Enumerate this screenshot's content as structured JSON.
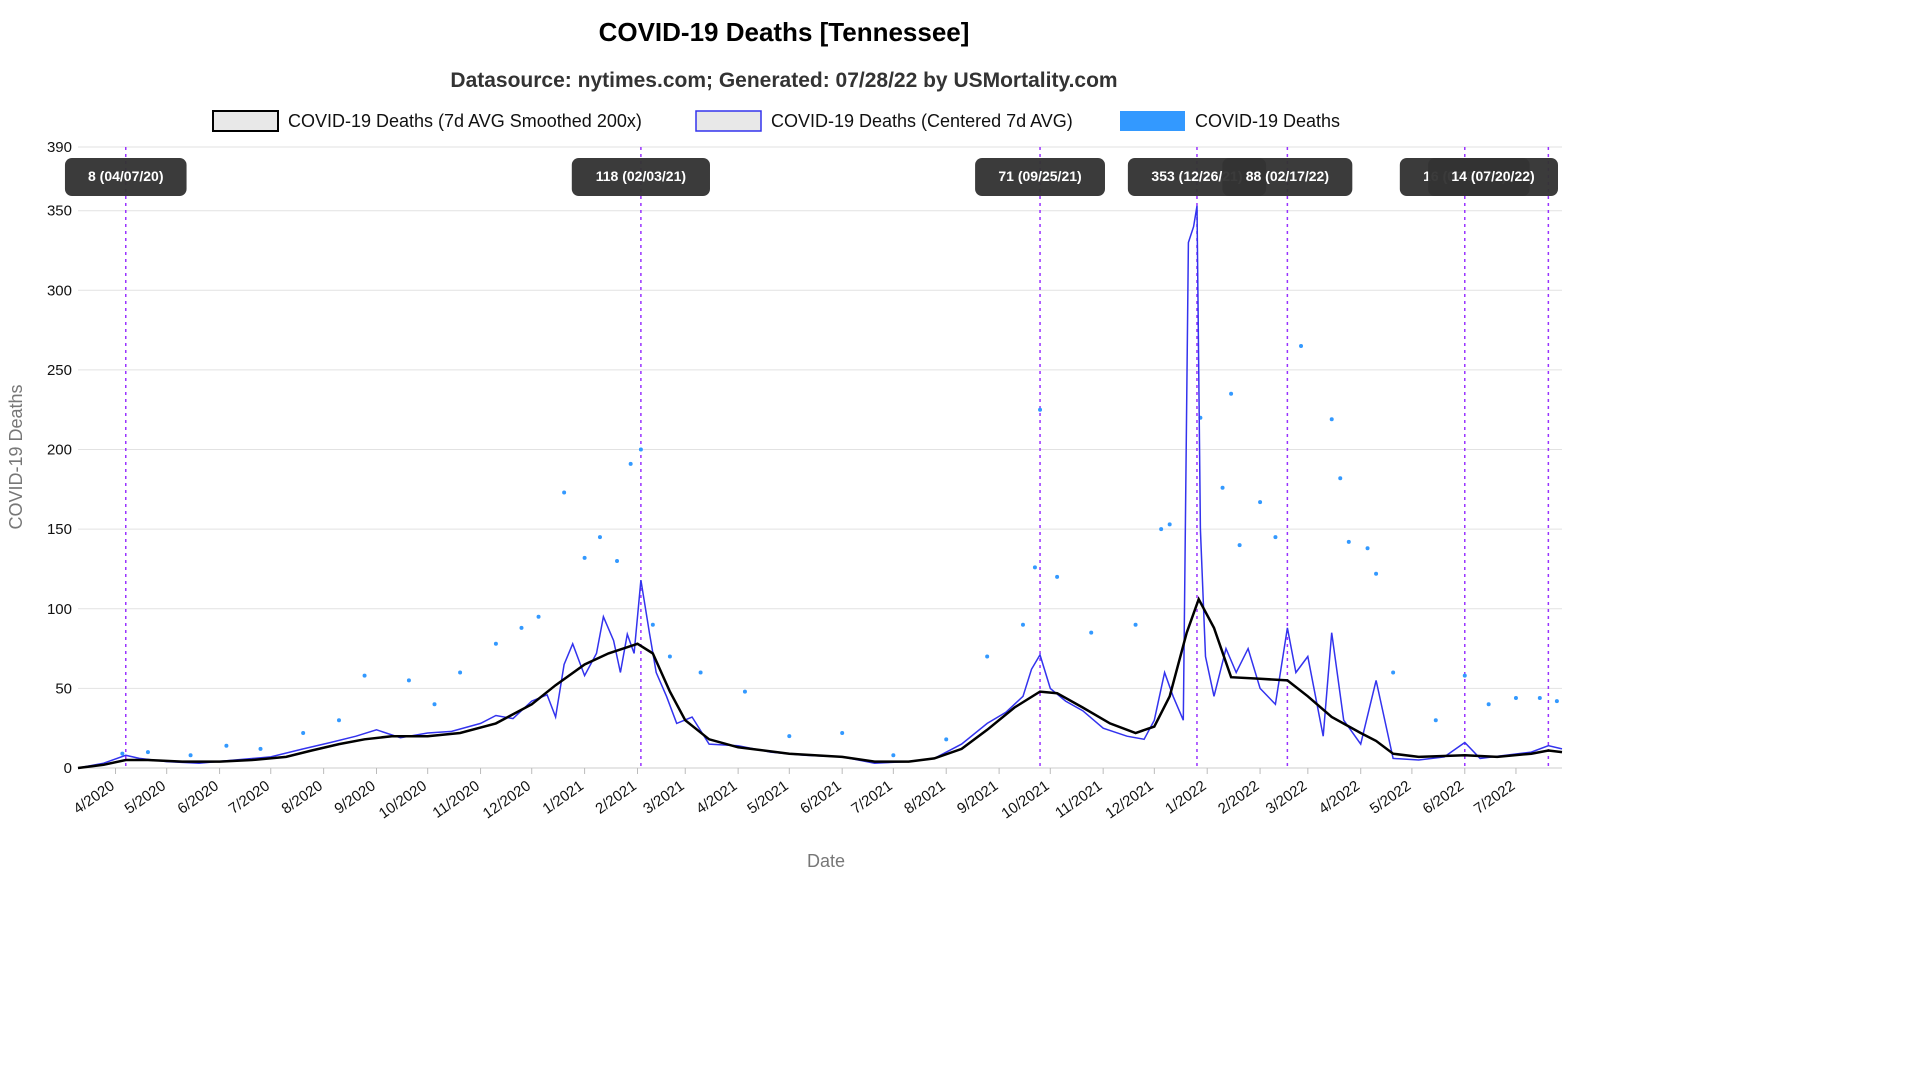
{
  "chart_data": {
    "type": "line",
    "title": "COVID-19 Deaths [Tennessee]",
    "subtitle": "Datasource: nytimes.com; Generated: 07/28/22 by USMortality.com",
    "xlabel": "Date",
    "ylabel": "COVID-19 Deaths",
    "ylim": [
      0,
      390
    ],
    "yticks": [
      0,
      50,
      100,
      150,
      200,
      250,
      300,
      350,
      390
    ],
    "x_range": [
      "2020-03-10",
      "2022-07-28"
    ],
    "x_tick_labels": [
      {
        "label": "4/2020",
        "date": "2020-04-01"
      },
      {
        "label": "5/2020",
        "date": "2020-05-01"
      },
      {
        "label": "6/2020",
        "date": "2020-06-01"
      },
      {
        "label": "7/2020",
        "date": "2020-07-01"
      },
      {
        "label": "8/2020",
        "date": "2020-08-01"
      },
      {
        "label": "9/2020",
        "date": "2020-09-01"
      },
      {
        "label": "10/2020",
        "date": "2020-10-01"
      },
      {
        "label": "11/2020",
        "date": "2020-11-01"
      },
      {
        "label": "12/2020",
        "date": "2020-12-01"
      },
      {
        "label": "1/2021",
        "date": "2021-01-01"
      },
      {
        "label": "2/2021",
        "date": "2021-02-01"
      },
      {
        "label": "3/2021",
        "date": "2021-03-01"
      },
      {
        "label": "4/2021",
        "date": "2021-04-01"
      },
      {
        "label": "5/2021",
        "date": "2021-05-01"
      },
      {
        "label": "6/2021",
        "date": "2021-06-01"
      },
      {
        "label": "7/2021",
        "date": "2021-07-01"
      },
      {
        "label": "8/2021",
        "date": "2021-08-01"
      },
      {
        "label": "9/2021",
        "date": "2021-09-01"
      },
      {
        "label": "10/2021",
        "date": "2021-10-01"
      },
      {
        "label": "11/2021",
        "date": "2021-11-01"
      },
      {
        "label": "12/2021",
        "date": "2021-12-01"
      },
      {
        "label": "1/2022",
        "date": "2022-01-01"
      },
      {
        "label": "2/2022",
        "date": "2022-02-01"
      },
      {
        "label": "3/2022",
        "date": "2022-03-01"
      },
      {
        "label": "4/2022",
        "date": "2022-04-01"
      },
      {
        "label": "5/2022",
        "date": "2022-05-01"
      },
      {
        "label": "6/2022",
        "date": "2022-06-01"
      },
      {
        "label": "7/2022",
        "date": "2022-07-01"
      }
    ],
    "grid": true,
    "legend_position": "top",
    "series": [
      {
        "name": "COVID-19 Deaths (7d AVG Smoothed 200x)",
        "color": "#000000",
        "style": "line",
        "points": [
          [
            "2020-03-10",
            0
          ],
          [
            "2020-03-25",
            2
          ],
          [
            "2020-04-07",
            5
          ],
          [
            "2020-04-20",
            5
          ],
          [
            "2020-05-10",
            4
          ],
          [
            "2020-06-01",
            4
          ],
          [
            "2020-06-20",
            5
          ],
          [
            "2020-07-10",
            7
          ],
          [
            "2020-07-25",
            11
          ],
          [
            "2020-08-10",
            15
          ],
          [
            "2020-08-25",
            18
          ],
          [
            "2020-09-10",
            20
          ],
          [
            "2020-10-01",
            20
          ],
          [
            "2020-10-20",
            22
          ],
          [
            "2020-11-10",
            28
          ],
          [
            "2020-12-01",
            40
          ],
          [
            "2020-12-15",
            52
          ],
          [
            "2021-01-01",
            65
          ],
          [
            "2021-01-15",
            72
          ],
          [
            "2021-02-01",
            78
          ],
          [
            "2021-02-10",
            72
          ],
          [
            "2021-02-20",
            48
          ],
          [
            "2021-03-01",
            30
          ],
          [
            "2021-03-15",
            18
          ],
          [
            "2021-04-01",
            13
          ],
          [
            "2021-05-01",
            9
          ],
          [
            "2021-06-01",
            7
          ],
          [
            "2021-06-20",
            4
          ],
          [
            "2021-07-10",
            4
          ],
          [
            "2021-07-25",
            6
          ],
          [
            "2021-08-10",
            12
          ],
          [
            "2021-08-25",
            24
          ],
          [
            "2021-09-10",
            38
          ],
          [
            "2021-09-25",
            48
          ],
          [
            "2021-10-05",
            47
          ],
          [
            "2021-10-20",
            38
          ],
          [
            "2021-11-05",
            28
          ],
          [
            "2021-11-20",
            22
          ],
          [
            "2021-12-01",
            26
          ],
          [
            "2021-12-10",
            45
          ],
          [
            "2021-12-20",
            85
          ],
          [
            "2021-12-27",
            106
          ],
          [
            "2022-01-05",
            88
          ],
          [
            "2022-01-15",
            57
          ],
          [
            "2022-02-01",
            56
          ],
          [
            "2022-02-17",
            55
          ],
          [
            "2022-03-01",
            45
          ],
          [
            "2022-03-15",
            32
          ],
          [
            "2022-04-01",
            22
          ],
          [
            "2022-04-10",
            17
          ],
          [
            "2022-04-20",
            9
          ],
          [
            "2022-05-05",
            7
          ],
          [
            "2022-06-01",
            8
          ],
          [
            "2022-06-20",
            7
          ],
          [
            "2022-07-10",
            9
          ],
          [
            "2022-07-20",
            11
          ],
          [
            "2022-07-28",
            10
          ]
        ]
      },
      {
        "name": "COVID-19 Deaths (Centered 7d AVG)",
        "color": "#3333ee",
        "style": "line",
        "points": [
          [
            "2020-03-10",
            0
          ],
          [
            "2020-03-25",
            3
          ],
          [
            "2020-04-07",
            8
          ],
          [
            "2020-04-15",
            6
          ],
          [
            "2020-05-01",
            4
          ],
          [
            "2020-05-20",
            3
          ],
          [
            "2020-06-10",
            5
          ],
          [
            "2020-07-01",
            7
          ],
          [
            "2020-07-20",
            12
          ],
          [
            "2020-08-05",
            16
          ],
          [
            "2020-08-20",
            20
          ],
          [
            "2020-09-01",
            24
          ],
          [
            "2020-09-15",
            19
          ],
          [
            "2020-10-01",
            22
          ],
          [
            "2020-10-15",
            23
          ],
          [
            "2020-11-01",
            28
          ],
          [
            "2020-11-10",
            33
          ],
          [
            "2020-11-20",
            31
          ],
          [
            "2020-12-01",
            42
          ],
          [
            "2020-12-10",
            46
          ],
          [
            "2020-12-15",
            32
          ],
          [
            "2020-12-20",
            65
          ],
          [
            "2020-12-25",
            78
          ],
          [
            "2021-01-01",
            58
          ],
          [
            "2021-01-08",
            72
          ],
          [
            "2021-01-12",
            95
          ],
          [
            "2021-01-18",
            80
          ],
          [
            "2021-01-22",
            60
          ],
          [
            "2021-01-26",
            84
          ],
          [
            "2021-01-30",
            72
          ],
          [
            "2021-02-03",
            118
          ],
          [
            "2021-02-08",
            85
          ],
          [
            "2021-02-12",
            60
          ],
          [
            "2021-02-18",
            45
          ],
          [
            "2021-02-24",
            28
          ],
          [
            "2021-03-05",
            32
          ],
          [
            "2021-03-15",
            15
          ],
          [
            "2021-04-01",
            14
          ],
          [
            "2021-04-20",
            10
          ],
          [
            "2021-05-10",
            8
          ],
          [
            "2021-06-01",
            7
          ],
          [
            "2021-06-20",
            3
          ],
          [
            "2021-07-10",
            4
          ],
          [
            "2021-07-25",
            6
          ],
          [
            "2021-08-10",
            15
          ],
          [
            "2021-08-25",
            28
          ],
          [
            "2021-09-05",
            35
          ],
          [
            "2021-09-15",
            45
          ],
          [
            "2021-09-20",
            62
          ],
          [
            "2021-09-25",
            71
          ],
          [
            "2021-10-01",
            50
          ],
          [
            "2021-10-10",
            42
          ],
          [
            "2021-10-20",
            36
          ],
          [
            "2021-11-01",
            25
          ],
          [
            "2021-11-15",
            20
          ],
          [
            "2021-11-25",
            18
          ],
          [
            "2021-12-01",
            30
          ],
          [
            "2021-12-07",
            60
          ],
          [
            "2021-12-12",
            45
          ],
          [
            "2021-12-18",
            30
          ],
          [
            "2021-12-21",
            330
          ],
          [
            "2021-12-24",
            340
          ],
          [
            "2021-12-26",
            353
          ],
          [
            "2021-12-28",
            150
          ],
          [
            "2021-12-31",
            70
          ],
          [
            "2022-01-05",
            45
          ],
          [
            "2022-01-12",
            75
          ],
          [
            "2022-01-18",
            60
          ],
          [
            "2022-01-25",
            75
          ],
          [
            "2022-02-01",
            50
          ],
          [
            "2022-02-10",
            40
          ],
          [
            "2022-02-17",
            88
          ],
          [
            "2022-02-22",
            60
          ],
          [
            "2022-03-01",
            70
          ],
          [
            "2022-03-10",
            20
          ],
          [
            "2022-03-15",
            85
          ],
          [
            "2022-03-22",
            30
          ],
          [
            "2022-04-01",
            15
          ],
          [
            "2022-04-10",
            55
          ],
          [
            "2022-04-20",
            6
          ],
          [
            "2022-05-05",
            5
          ],
          [
            "2022-05-20",
            7
          ],
          [
            "2022-06-01",
            16
          ],
          [
            "2022-06-10",
            6
          ],
          [
            "2022-06-25",
            8
          ],
          [
            "2022-07-10",
            10
          ],
          [
            "2022-07-20",
            14
          ],
          [
            "2022-07-28",
            12
          ]
        ]
      },
      {
        "name": "COVID-19 Deaths",
        "color": "#3399ff",
        "style": "scatter",
        "points": [
          [
            "2020-04-05",
            9
          ],
          [
            "2020-04-20",
            10
          ],
          [
            "2020-05-15",
            8
          ],
          [
            "2020-06-05",
            14
          ],
          [
            "2020-06-25",
            12
          ],
          [
            "2020-07-20",
            22
          ],
          [
            "2020-08-10",
            30
          ],
          [
            "2020-08-25",
            58
          ],
          [
            "2020-09-20",
            55
          ],
          [
            "2020-10-05",
            40
          ],
          [
            "2020-10-20",
            60
          ],
          [
            "2020-11-10",
            78
          ],
          [
            "2020-11-25",
            88
          ],
          [
            "2020-12-05",
            95
          ],
          [
            "2020-12-20",
            173
          ],
          [
            "2021-01-01",
            132
          ],
          [
            "2021-01-10",
            145
          ],
          [
            "2021-01-20",
            130
          ],
          [
            "2021-01-28",
            191
          ],
          [
            "2021-02-03",
            200
          ],
          [
            "2021-02-10",
            90
          ],
          [
            "2021-02-20",
            70
          ],
          [
            "2021-03-10",
            60
          ],
          [
            "2021-04-05",
            48
          ],
          [
            "2021-05-01",
            20
          ],
          [
            "2021-06-01",
            22
          ],
          [
            "2021-07-01",
            8
          ],
          [
            "2021-08-01",
            18
          ],
          [
            "2021-08-25",
            70
          ],
          [
            "2021-09-15",
            90
          ],
          [
            "2021-09-22",
            126
          ],
          [
            "2021-09-25",
            225
          ],
          [
            "2021-10-05",
            120
          ],
          [
            "2021-10-25",
            85
          ],
          [
            "2021-11-20",
            90
          ],
          [
            "2021-12-05",
            150
          ],
          [
            "2021-12-10",
            153
          ],
          [
            "2021-12-28",
            220
          ],
          [
            "2022-01-10",
            176
          ],
          [
            "2022-01-15",
            235
          ],
          [
            "2022-01-20",
            140
          ],
          [
            "2022-02-01",
            167
          ],
          [
            "2022-02-10",
            145
          ],
          [
            "2022-02-25",
            265
          ],
          [
            "2022-03-15",
            219
          ],
          [
            "2022-03-20",
            182
          ],
          [
            "2022-03-25",
            142
          ],
          [
            "2022-04-05",
            138
          ],
          [
            "2022-04-10",
            122
          ],
          [
            "2022-04-20",
            60
          ],
          [
            "2022-05-15",
            30
          ],
          [
            "2022-06-01",
            58
          ],
          [
            "2022-06-15",
            40
          ],
          [
            "2022-07-01",
            44
          ],
          [
            "2022-07-15",
            44
          ],
          [
            "2022-07-25",
            42
          ]
        ]
      }
    ],
    "annotations": [
      {
        "label": "8 (04/07/20)",
        "date": "2020-04-07"
      },
      {
        "label": "118 (02/03/21)",
        "date": "2021-02-03"
      },
      {
        "label": "71 (09/25/21)",
        "date": "2021-09-25"
      },
      {
        "label": "353 (12/26/21)",
        "date": "2021-12-26"
      },
      {
        "label": "88 (02/17/22)",
        "date": "2022-02-17"
      },
      {
        "label": "16 (06/01/22)",
        "date": "2022-06-01"
      },
      {
        "label": "14 (07/20/22)",
        "date": "2022-07-20"
      }
    ]
  }
}
